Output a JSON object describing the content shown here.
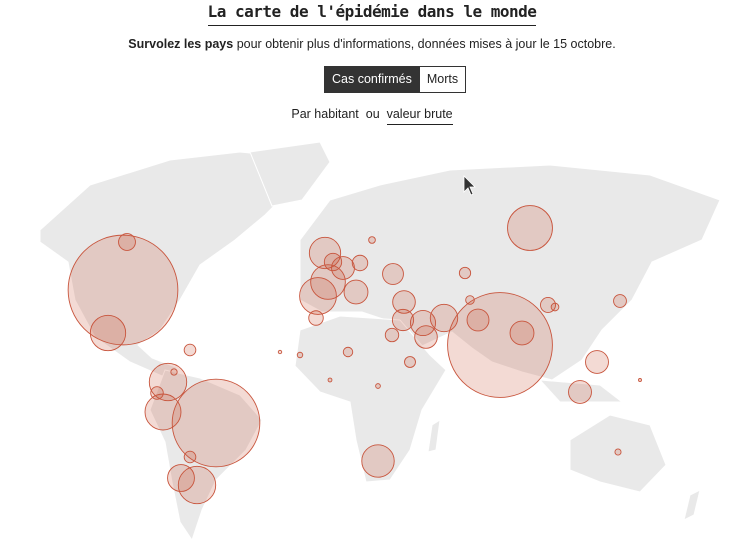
{
  "header": {
    "title": "La carte de l'épidémie dans le monde",
    "subtitle_bold": "Survolez les pays",
    "subtitle": "pour obtenir plus d'informations, données mises à jour le 15 octobre."
  },
  "toggles": {
    "metric": [
      "Cas confirmés",
      "Morts"
    ],
    "scale": [
      "Par habitant",
      "valeur brute"
    ],
    "separator": "ou"
  },
  "chart_data": {
    "type": "bubble-map",
    "color": "#c8553d",
    "values": [
      8000000,
      7300000,
      5100000,
      1340000,
      930000,
      930000,
      860000,
      830000,
      800000,
      900000,
      700000,
      650000,
      500000,
      480000,
      420000,
      380000,
      380000,
      350000,
      350000,
      340000,
      350000,
      320000,
      340000,
      300000,
      290000,
      190000,
      200000,
      160000,
      140000,
      120000,
      105000,
      90000,
      85000,
      150000,
      110000,
      90000,
      27000,
      25000,
      15000,
      80000,
      60000,
      50000,
      40000,
      30000,
      20000,
      10000,
      8000,
      5000
    ]
  }
}
